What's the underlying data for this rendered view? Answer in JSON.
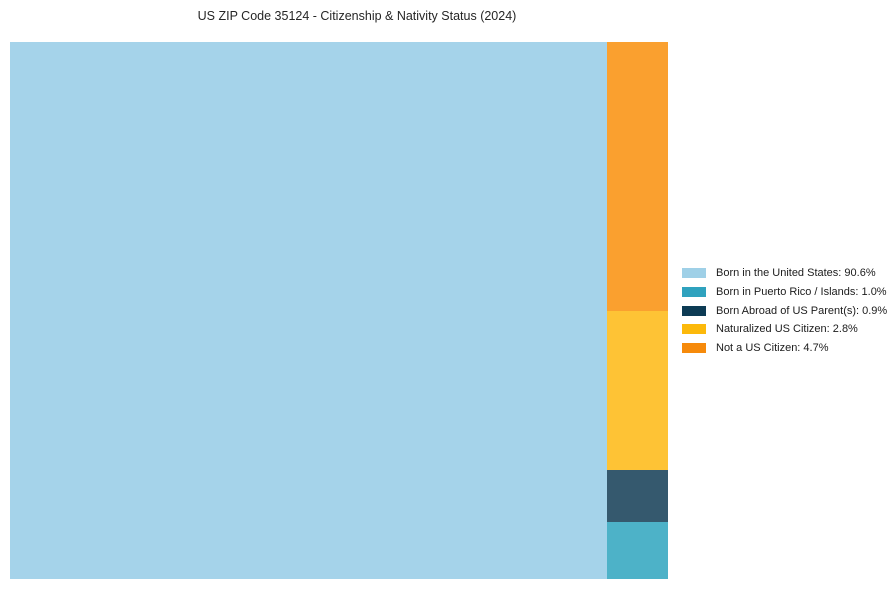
{
  "title": "US ZIP Code 35124 - Citizenship & Nativity Status (2024)",
  "chart_data": {
    "type": "treemap",
    "title": "US ZIP Code 35124 - Citizenship & Nativity Status (2024)",
    "unit": "percent",
    "categories": [
      "Born in the United States",
      "Born in Puerto Rico / Islands",
      "Born Abroad of US Parent(s)",
      "Naturalized US Citizen",
      "Not a US Citizen"
    ],
    "values": [
      90.6,
      1.0,
      0.9,
      2.8,
      4.7
    ],
    "colors": [
      "#9FD0E7",
      "#2FA2BE",
      "#0D3B54",
      "#FCB90B",
      "#F68A0B"
    ],
    "legend_position": "right",
    "layout_hint": "large block left; right column stacked top-to-bottom: Not a US Citizen, Naturalized US Citizen, Born Abroad of US Parent(s), Born in Puerto Rico / Islands"
  },
  "segments": {
    "born_us": {
      "label": "Born in the United States",
      "pct": "90.6%",
      "fill": "#A5D3EA"
    },
    "puerto_rico": {
      "label": "Born in Puerto Rico / Islands",
      "pct": "1.0%",
      "fill": "#4DB2C8"
    },
    "born_abroad": {
      "label": "Born Abroad of US Parent(s)",
      "pct": "0.9%",
      "fill": "#35596E"
    },
    "naturalized": {
      "label": "Naturalized US Citizen",
      "pct": "2.8%",
      "fill": "#FEC335"
    },
    "not_citizen": {
      "label": "Not a US Citizen",
      "pct": "4.7%",
      "fill": "#FAA02F"
    }
  },
  "legend": {
    "items": [
      {
        "label": "Born in the United States: 90.6%",
        "swatch": "#9FD0E7"
      },
      {
        "label": "Born in Puerto Rico / Islands: 1.0%",
        "swatch": "#2FA2BE"
      },
      {
        "label": "Born Abroad of US Parent(s): 0.9%",
        "swatch": "#0D3B54"
      },
      {
        "label": "Naturalized US Citizen: 2.8%",
        "swatch": "#FCB90B"
      },
      {
        "label": "Not a US Citizen: 4.7%",
        "swatch": "#F68A0B"
      }
    ]
  }
}
